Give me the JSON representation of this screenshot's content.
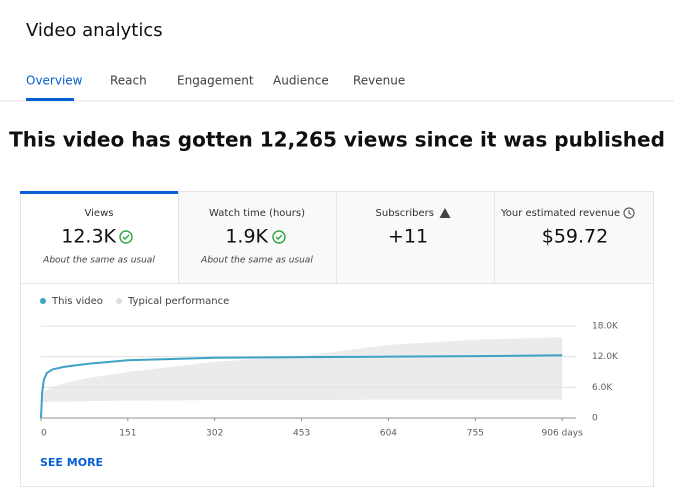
{
  "header": {
    "title": "Video analytics"
  },
  "tabs": [
    "Overview",
    "Reach",
    "Engagement",
    "Audience",
    "Revenue"
  ],
  "headline": "This video has gotten 12,265 views since it was published",
  "metrics": [
    {
      "label": "Views",
      "value": "12.3K",
      "note": "About the same as usual"
    },
    {
      "label": "Watch time (hours)",
      "value": "1.9K",
      "note": "About the same as usual"
    },
    {
      "label": "Subscribers",
      "value": "+11"
    },
    {
      "label": "Your estimated revenue",
      "value": "$59.72"
    }
  ],
  "chart_data": {
    "type": "line",
    "x": [
      0,
      2,
      5,
      10,
      20,
      40,
      80,
      151,
      302,
      453,
      604,
      755,
      906
    ],
    "series": [
      {
        "name": "This video",
        "color": "#3ea2c4",
        "values": [
          0,
          5000,
          7500,
          8800,
          9500,
          10000,
          10600,
          11300,
          11800,
          11900,
          12000,
          12100,
          12265
        ]
      },
      {
        "name": "Typical performance",
        "color": "#dedede",
        "lower": [
          3000,
          3000,
          3100,
          3100,
          3200,
          3200,
          3300,
          3400,
          3500,
          3500,
          3600,
          3600,
          3600
        ],
        "upper": [
          4000,
          4500,
          5000,
          5500,
          6000,
          6800,
          7800,
          9000,
          11000,
          12100,
          14300,
          15300,
          15800
        ]
      }
    ],
    "xlim": [
      0,
      930
    ],
    "xticks": [
      0,
      151,
      302,
      453,
      604,
      755,
      {
        "value": 906,
        "label": "906 days"
      }
    ],
    "ylim": [
      0,
      18000
    ],
    "yticks": [
      0,
      {
        "value": 6000,
        "label": "6.0K"
      },
      {
        "value": 12000,
        "label": "12.0K"
      },
      {
        "value": 18000,
        "label": "18.0K"
      }
    ],
    "grid": true
  },
  "see_more": "SEE MORE"
}
